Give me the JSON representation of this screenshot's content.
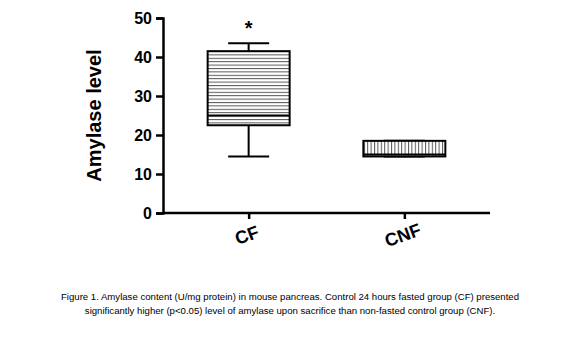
{
  "chart_data": {
    "type": "box",
    "y_label": "Amylase level",
    "categories": [
      "CF",
      "CNF"
    ],
    "boxes": [
      {
        "min": 14.5,
        "q1": 22.5,
        "median": 25,
        "q3": 41.5,
        "max": 43.5
      },
      {
        "min": 14.5,
        "q1": 14.5,
        "median": 15,
        "q3": 18.5,
        "max": 18.5
      }
    ],
    "color": "#000000",
    "ylim": [
      0,
      50
    ],
    "yticks": [
      0,
      10,
      20,
      30,
      40,
      50
    ],
    "grid": false,
    "annotations": [
      {
        "text": "*",
        "category": "CF"
      }
    ],
    "caption": [
      "Figure 1. Amylase content (U/mg protein) in mouse pancreas. Control 24 hours fasted group (CF) presented",
      "significantly higher (p<0.05) level of amylase upon sacrifice than non-fasted control group (CNF)."
    ]
  }
}
